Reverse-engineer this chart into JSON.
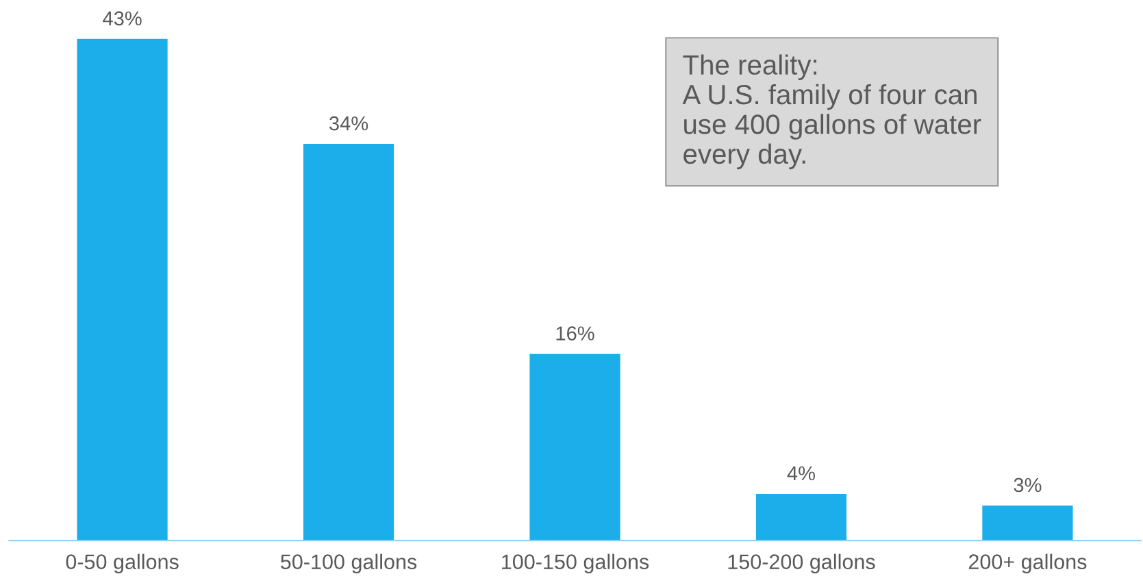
{
  "chart_data": {
    "type": "bar",
    "categories": [
      "0-50 gallons",
      "50-100 gallons",
      "100-150 gallons",
      "150-200 gallons",
      "200+ gallons"
    ],
    "values": [
      43,
      34,
      16,
      4,
      3
    ],
    "value_labels": [
      "43%",
      "34%",
      "16%",
      "4%",
      "3%"
    ],
    "color": "#1cadeb",
    "grid": false,
    "annotations": [
      "The reality:\nA U.S. family of four can\nuse 400 gallons of water\nevery day."
    ]
  }
}
